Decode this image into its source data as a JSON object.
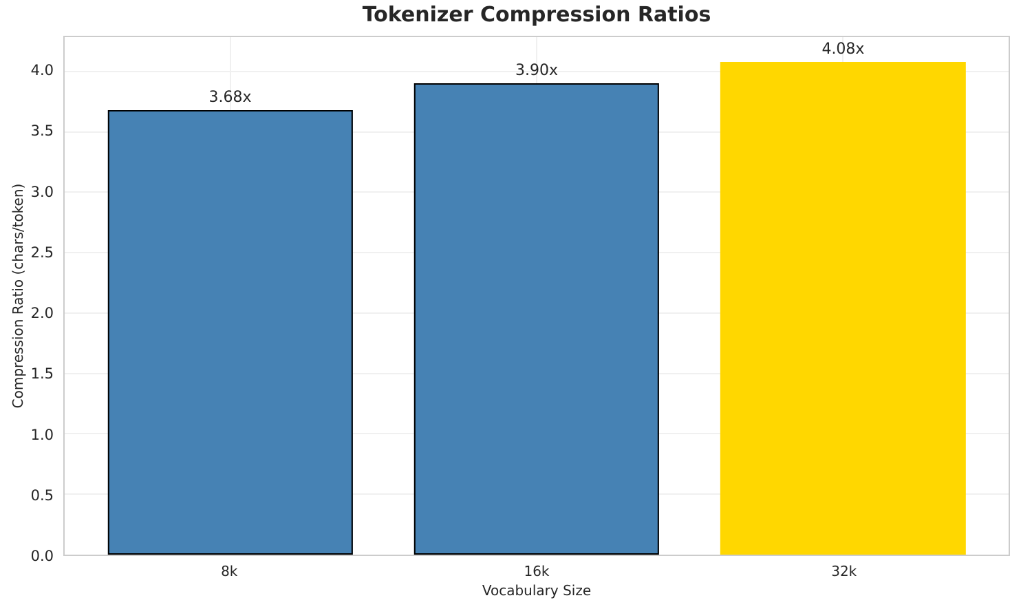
{
  "chart_data": {
    "type": "bar",
    "title": "Tokenizer Compression Ratios",
    "xlabel": "Vocabulary Size",
    "ylabel": "Compression Ratio (chars/token)",
    "categories": [
      "8k",
      "16k",
      "32k"
    ],
    "values": [
      3.68,
      3.9,
      4.08
    ],
    "bar_labels": [
      "3.68x",
      "3.90x",
      "4.08x"
    ],
    "bar_colors": [
      "#4682B4",
      "#4682B4",
      "#FFD700"
    ],
    "bar_edge_colors": [
      "#000000",
      "#000000",
      "none"
    ],
    "yticks": [
      "0.0",
      "0.5",
      "1.0",
      "1.5",
      "2.0",
      "2.5",
      "3.0",
      "3.5",
      "4.0"
    ],
    "ylim": [
      0,
      4.284
    ],
    "xlim_units": [
      -0.54,
      2.54
    ],
    "bar_width_units": 0.8,
    "grid": true,
    "legend": "none",
    "grid_color": "#f0f0f0",
    "spine_color": "#cccccc",
    "text_color": "#262626",
    "background_color": "#ffffff"
  }
}
